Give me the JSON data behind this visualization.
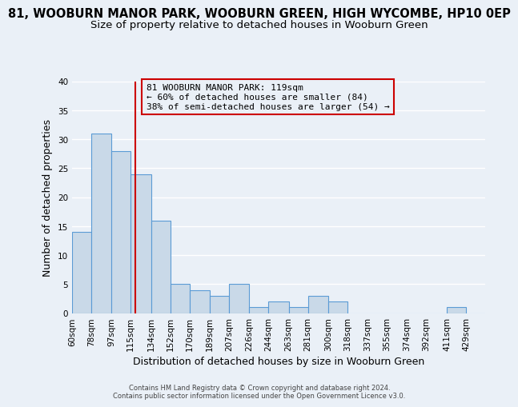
{
  "title": "81, WOOBURN MANOR PARK, WOOBURN GREEN, HIGH WYCOMBE, HP10 0EP",
  "subtitle": "Size of property relative to detached houses in Wooburn Green",
  "xlabel": "Distribution of detached houses by size in Wooburn Green",
  "ylabel": "Number of detached properties",
  "bin_labels": [
    "60sqm",
    "78sqm",
    "97sqm",
    "115sqm",
    "134sqm",
    "152sqm",
    "170sqm",
    "189sqm",
    "207sqm",
    "226sqm",
    "244sqm",
    "263sqm",
    "281sqm",
    "300sqm",
    "318sqm",
    "337sqm",
    "355sqm",
    "374sqm",
    "392sqm",
    "411sqm",
    "429sqm"
  ],
  "bin_edges": [
    60,
    78,
    97,
    115,
    134,
    152,
    170,
    189,
    207,
    226,
    244,
    263,
    281,
    300,
    318,
    337,
    355,
    374,
    392,
    411,
    429,
    447
  ],
  "bar_heights": [
    14,
    31,
    28,
    24,
    16,
    5,
    4,
    3,
    5,
    1,
    2,
    1,
    3,
    2,
    0,
    0,
    0,
    0,
    0,
    1,
    0
  ],
  "bar_color": "#c9d9e8",
  "bar_edgecolor": "#5b9bd5",
  "vline_x": 119,
  "vline_color": "#cc0000",
  "ylim": [
    0,
    40
  ],
  "annotation_line1": "81 WOOBURN MANOR PARK: 119sqm",
  "annotation_line2": "← 60% of detached houses are smaller (84)",
  "annotation_line3": "38% of semi-detached houses are larger (54) →",
  "annotation_box_color": "#cc0000",
  "footer_line1": "Contains HM Land Registry data © Crown copyright and database right 2024.",
  "footer_line2": "Contains public sector information licensed under the Open Government Licence v3.0.",
  "background_color": "#eaf0f7",
  "grid_color": "#ffffff",
  "title_fontsize": 10.5,
  "subtitle_fontsize": 9.5,
  "axis_label_fontsize": 9,
  "tick_fontsize": 7.5
}
